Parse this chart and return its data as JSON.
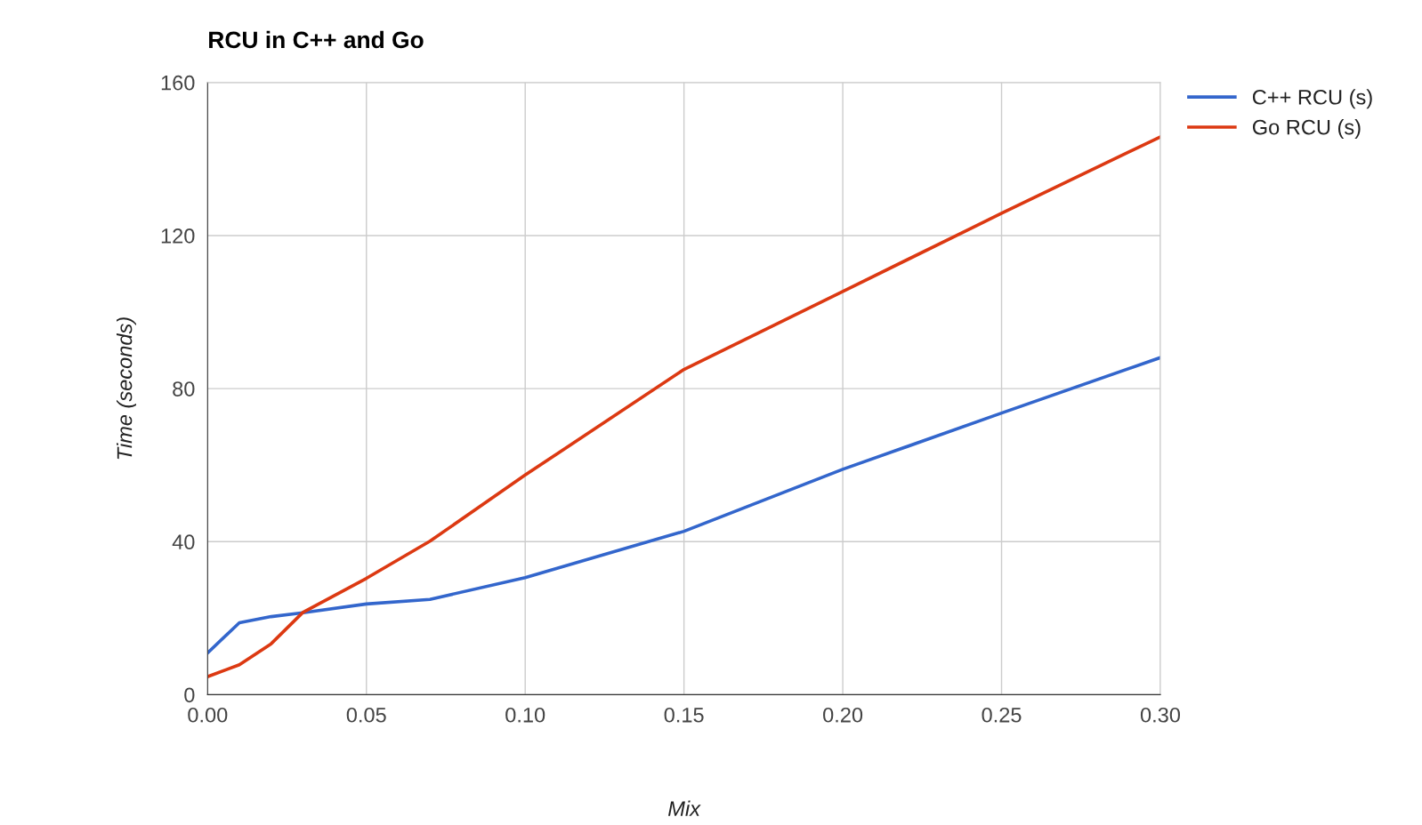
{
  "chart_data": {
    "type": "line",
    "title": "RCU in C++ and Go",
    "xlabel": "Mix",
    "ylabel": "Time (seconds)",
    "x": [
      0,
      0.01,
      0.02,
      0.03,
      0.05,
      0.07,
      0.1,
      0.15,
      0.2,
      0.25,
      0.3
    ],
    "series": [
      {
        "name": "C++ RCU (s)",
        "color": "#3366cc",
        "values": [
          10.9,
          18.8,
          20.4,
          21.4,
          23.7,
          24.9,
          30.6,
          42.7,
          58.9,
          73.6,
          88.1
        ]
      },
      {
        "name": "Go RCU (s)",
        "color": "#dc3912",
        "values": [
          4.7,
          7.8,
          13.3,
          21.5,
          30.4,
          40.1,
          57.4,
          85.0,
          105.4,
          125.8,
          145.8
        ]
      }
    ],
    "xlim": [
      0,
      0.3
    ],
    "xticks": [
      {
        "value": 0,
        "label": "0.00"
      },
      {
        "value": 0.05,
        "label": "0.05"
      },
      {
        "value": 0.1,
        "label": "0.10"
      },
      {
        "value": 0.15,
        "label": "0.15"
      },
      {
        "value": 0.2,
        "label": "0.20"
      },
      {
        "value": 0.25,
        "label": "0.25"
      },
      {
        "value": 0.3,
        "label": "0.30"
      }
    ],
    "ylim": [
      0,
      160
    ],
    "yticks": [
      0,
      40,
      80,
      120,
      160
    ],
    "grid": true,
    "legend": "top right",
    "marker": "none",
    "line_style": "solid"
  }
}
